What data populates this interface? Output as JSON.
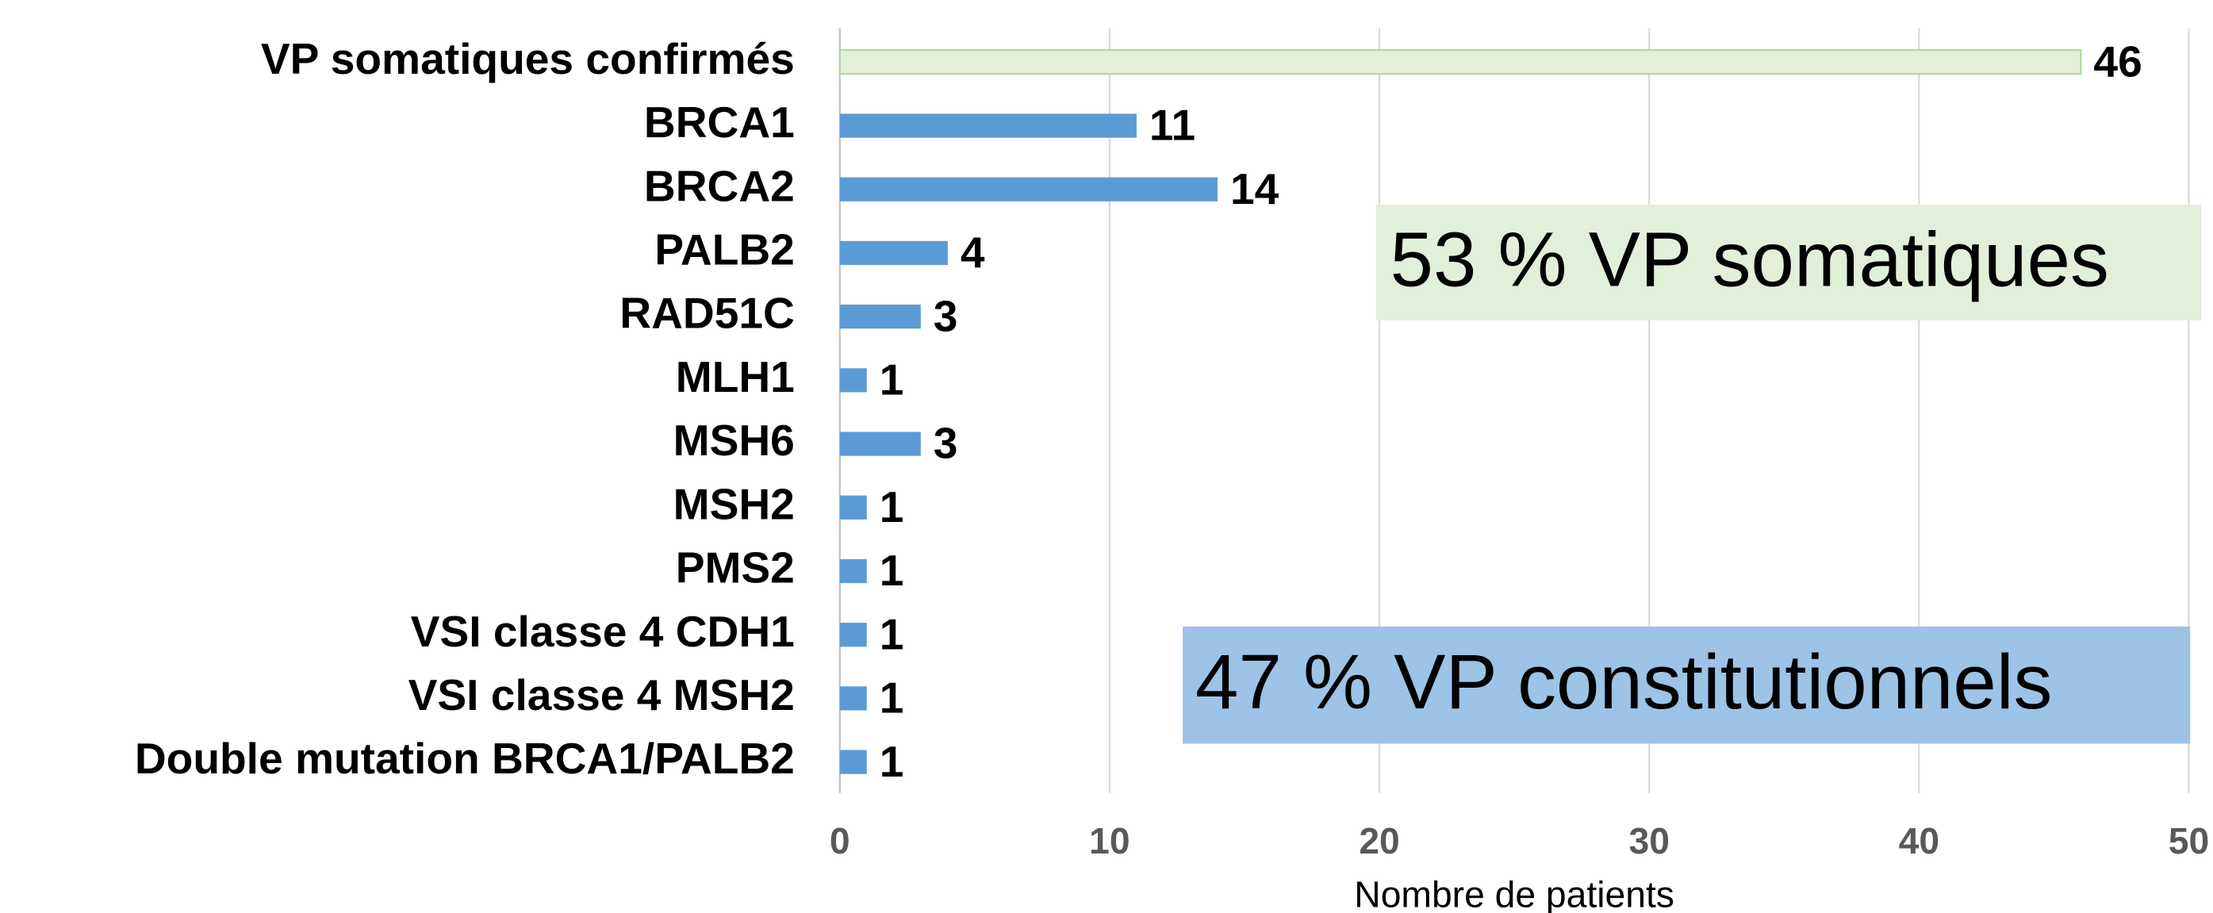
{
  "chart_data": {
    "type": "barh",
    "categories": [
      "VP somatiques confirmés",
      "BRCA1",
      "BRCA2",
      "PALB2",
      "RAD51C",
      "MLH1",
      "MSH6",
      "MSH2",
      "PMS2",
      "VSI classe 4 CDH1",
      "VSI classe 4 MSH2",
      "Double mutation BRCA1/PALB2"
    ],
    "values": [
      46,
      11,
      14,
      4,
      3,
      1,
      3,
      1,
      1,
      1,
      1,
      1
    ],
    "colors": [
      "#e2efd9",
      "#5b9bd5",
      "#5b9bd5",
      "#5b9bd5",
      "#5b9bd5",
      "#5b9bd5",
      "#5b9bd5",
      "#5b9bd5",
      "#5b9bd5",
      "#5b9bd5",
      "#5b9bd5",
      "#5b9bd5"
    ],
    "xlim": [
      0,
      50
    ],
    "xticks": [
      0,
      10,
      20,
      30,
      40,
      50
    ],
    "grid": true,
    "xlabel": "Nombre de patients",
    "annotations": [
      {
        "text": "53 % VP somatiques",
        "color": "#e2efd9"
      },
      {
        "text": "47 % VP constitutionnels",
        "color": "#9dc3e6"
      }
    ]
  }
}
